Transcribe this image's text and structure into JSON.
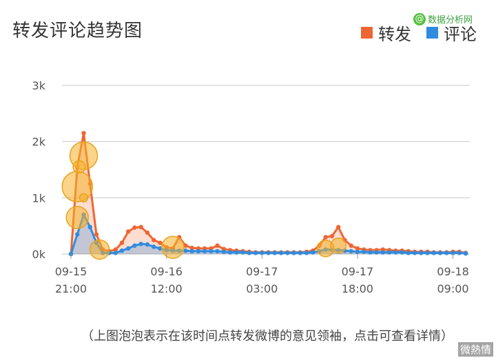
{
  "watermark": {
    "text": "数据分析网"
  },
  "footer": {
    "note": "（上图泡泡表示在该时间点转发微博的意见领袖，点击可查看详情）",
    "badge": "微熱情"
  },
  "chart_data": {
    "type": "line",
    "title": "转发评论趋势图",
    "ylim": [
      0,
      3000
    ],
    "yticks": [
      {
        "value": 0,
        "label": "0k"
      },
      {
        "value": 1000,
        "label": "1k"
      },
      {
        "value": 2000,
        "label": "2k"
      },
      {
        "value": 3000,
        "label": "3k"
      }
    ],
    "xticks": [
      {
        "index": 0,
        "line1": "09-15",
        "line2": "21:00"
      },
      {
        "index": 15,
        "line1": "09-16",
        "line2": "12:00"
      },
      {
        "index": 30,
        "line1": "09-17",
        "line2": "03:00"
      },
      {
        "index": 45,
        "line1": "09-17",
        "line2": "18:00"
      },
      {
        "index": 60,
        "line1": "09-18",
        "line2": "09:00"
      }
    ],
    "legend_position": "top-right",
    "grid": true,
    "series": [
      {
        "name": "转发",
        "color": "#ee6633",
        "values": [
          0,
          1550,
          2150,
          1250,
          350,
          80,
          50,
          80,
          200,
          400,
          470,
          480,
          380,
          250,
          200,
          120,
          100,
          300,
          150,
          110,
          100,
          100,
          100,
          150,
          90,
          70,
          60,
          50,
          40,
          30,
          30,
          30,
          30,
          30,
          30,
          30,
          30,
          40,
          60,
          150,
          300,
          320,
          480,
          250,
          150,
          100,
          80,
          70,
          70,
          80,
          70,
          60,
          60,
          50,
          40,
          40,
          40,
          30,
          30,
          30,
          40,
          40,
          20
        ]
      },
      {
        "name": "评论",
        "color": "#2f8ce0",
        "values": [
          0,
          350,
          700,
          480,
          200,
          20,
          20,
          20,
          60,
          100,
          150,
          180,
          170,
          130,
          100,
          70,
          60,
          60,
          60,
          50,
          50,
          50,
          50,
          50,
          40,
          30,
          30,
          30,
          20,
          20,
          20,
          20,
          20,
          20,
          20,
          20,
          20,
          20,
          30,
          50,
          80,
          80,
          70,
          60,
          50,
          40,
          40,
          30,
          30,
          30,
          30,
          30,
          30,
          20,
          20,
          20,
          20,
          20,
          20,
          20,
          20,
          20,
          10
        ]
      }
    ],
    "bubbles": [
      {
        "x": 1,
        "y": 1200,
        "size": 22
      },
      {
        "x": 1,
        "y": 650,
        "size": 16
      },
      {
        "x": 2,
        "y": 1750,
        "size": 20
      },
      {
        "x": 1.3,
        "y": 1550,
        "size": 9
      },
      {
        "x": 2,
        "y": 1000,
        "size": 6
      },
      {
        "x": 4.5,
        "y": 80,
        "size": 14
      },
      {
        "x": 16,
        "y": 120,
        "size": 16
      },
      {
        "x": 40,
        "y": 100,
        "size": 12
      },
      {
        "x": 42,
        "y": 150,
        "size": 11
      }
    ]
  }
}
